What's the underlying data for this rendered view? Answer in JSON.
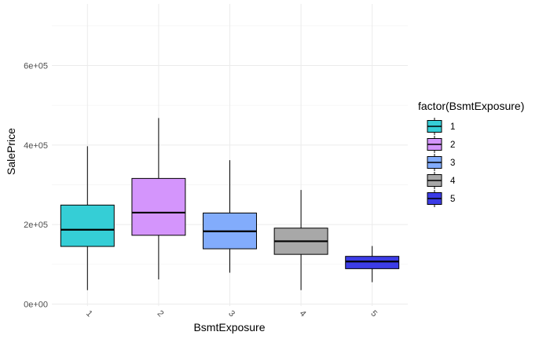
{
  "chart_data": {
    "type": "box",
    "xlabel": "BsmtExposure",
    "ylabel": "SalePrice",
    "ylim": [
      -5000,
      755000
    ],
    "y_ticks": [
      0,
      200000,
      400000,
      600000
    ],
    "y_tick_labels": [
      "0e+00",
      "2e+05",
      "4e+05",
      "6e+05"
    ],
    "grid": true,
    "legend": {
      "title": "factor(BsmtExposure)",
      "position": "right"
    },
    "categories": [
      "1",
      "2",
      "3",
      "4",
      "5"
    ],
    "colors": [
      "#35CED6",
      "#D495FC",
      "#82ACFC",
      "#A8A8A8",
      "#3C3CE6"
    ],
    "boxes": [
      {
        "category": "1",
        "whisker_low": 35000,
        "q1": 145000,
        "median": 187000,
        "q3": 249000,
        "whisker_high": 397000
      },
      {
        "category": "2",
        "whisker_low": 62000,
        "q1": 173000,
        "median": 230000,
        "q3": 316000,
        "whisker_high": 468000
      },
      {
        "category": "3",
        "whisker_low": 79000,
        "q1": 139000,
        "median": 183000,
        "q3": 229000,
        "whisker_high": 362000
      },
      {
        "category": "4",
        "whisker_low": 35000,
        "q1": 125000,
        "median": 158000,
        "q3": 191000,
        "whisker_high": 287000
      },
      {
        "category": "5",
        "whisker_low": 55000,
        "q1": 89000,
        "median": 107000,
        "q3": 120000,
        "whisker_high": 146000
      }
    ]
  }
}
